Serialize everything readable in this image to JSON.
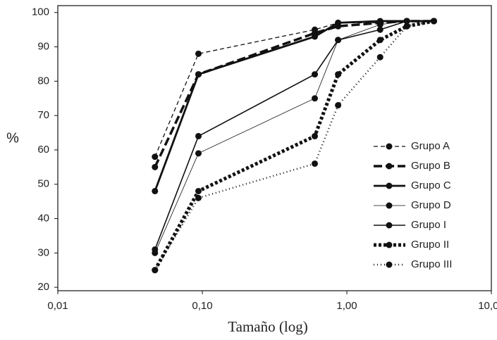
{
  "chart_data": {
    "type": "line",
    "x_label": "Tamaño (log)",
    "y_label": "%",
    "x": [
      0.047,
      0.094,
      0.6,
      0.87,
      1.7,
      2.6,
      4.0
    ],
    "xlog": true,
    "xlim": [
      0.01,
      10
    ],
    "xticks": [
      {
        "value": 0.01,
        "label": "0,01"
      },
      {
        "value": 0.1,
        "label": "0,10"
      },
      {
        "value": 1,
        "label": "1,00"
      },
      {
        "value": 10,
        "label": "10,00"
      }
    ],
    "ylim": [
      19,
      102
    ],
    "yticks": [
      20,
      30,
      40,
      50,
      60,
      70,
      80,
      90,
      100
    ],
    "grid": false,
    "legend": "lower right",
    "series": [
      {
        "name": "Grupo A",
        "color": "#111111",
        "width": 1.3,
        "dash": "6,4",
        "values": [
          58,
          88,
          95,
          97,
          97,
          97.5,
          97.5
        ]
      },
      {
        "name": "Grupo B",
        "color": "#111111",
        "width": 3.5,
        "dash": "12,5",
        "values": [
          55,
          82,
          94,
          96,
          97,
          97.5,
          97.5
        ]
      },
      {
        "name": "Grupo C",
        "color": "#111111",
        "width": 2.8,
        "dash": "none",
        "values": [
          48,
          82,
          93,
          97,
          97.5,
          97.5,
          97.5
        ]
      },
      {
        "name": "Grupo D",
        "color": "#111111",
        "width": 0.8,
        "dash": "none",
        "values": [
          30,
          59,
          75,
          92,
          96.5,
          97.5,
          97.5
        ]
      },
      {
        "name": "Grupo I",
        "color": "#111111",
        "width": 1.6,
        "dash": "none",
        "values": [
          31,
          64,
          82,
          92,
          95,
          97.5,
          97.5
        ]
      },
      {
        "name": "Grupo II",
        "color": "#111111",
        "width": 5,
        "dash": "4,3",
        "values": [
          25,
          48,
          64,
          82,
          92,
          96,
          97.5
        ]
      },
      {
        "name": "Grupo III",
        "color": "#111111",
        "width": 2.5,
        "dash": "1,4",
        "values": [
          25,
          46,
          56,
          73,
          87,
          96,
          97.5
        ]
      }
    ]
  }
}
